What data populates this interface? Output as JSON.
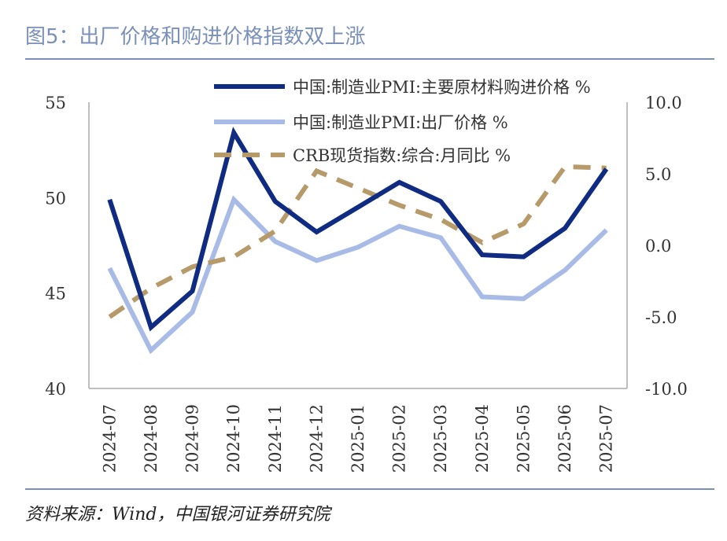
{
  "title": "图5：出厂价格和购进价格指数双上涨",
  "source": "资料来源：Wind，中国银河证券研究院",
  "chart_data": {
    "type": "line",
    "categories": [
      "2024-07",
      "2024-08",
      "2024-09",
      "2024-10",
      "2024-11",
      "2024-12",
      "2025-01",
      "2025-02",
      "2025-03",
      "2025-04",
      "2025-05",
      "2025-06",
      "2025-07"
    ],
    "y_left": {
      "range": [
        40,
        55
      ],
      "ticks": [
        "40",
        "45",
        "50",
        "55"
      ]
    },
    "y_right": {
      "range": [
        -10,
        10
      ],
      "ticks": [
        "-10.0",
        "-5.0",
        "0.0",
        "5.0",
        "10.0"
      ]
    },
    "legend_position": "top",
    "grid": false,
    "series": [
      {
        "name": "中国:制造业PMI:主要原材料购进价格 %",
        "axis": "left",
        "style": "solid",
        "color": "#0f2c82",
        "values": [
          49.9,
          43.2,
          45.1,
          53.4,
          49.8,
          48.2,
          49.5,
          50.8,
          49.8,
          47.0,
          46.9,
          48.4,
          51.5
        ]
      },
      {
        "name": "中国:制造业PMI:出厂价格 %",
        "axis": "left",
        "style": "solid",
        "color": "#a7bbe6",
        "values": [
          46.3,
          42.0,
          44.0,
          49.9,
          47.7,
          46.7,
          47.4,
          48.5,
          47.9,
          44.8,
          44.7,
          46.2,
          48.3
        ]
      },
      {
        "name": "CRB现货指数:综合:月同比 %",
        "axis": "right",
        "style": "dashed",
        "color": "#b79a6a",
        "values": [
          -5.0,
          -3.0,
          -1.5,
          -0.8,
          1.0,
          5.2,
          4.0,
          2.8,
          1.8,
          0.2,
          1.5,
          5.5,
          5.4
        ]
      }
    ]
  }
}
